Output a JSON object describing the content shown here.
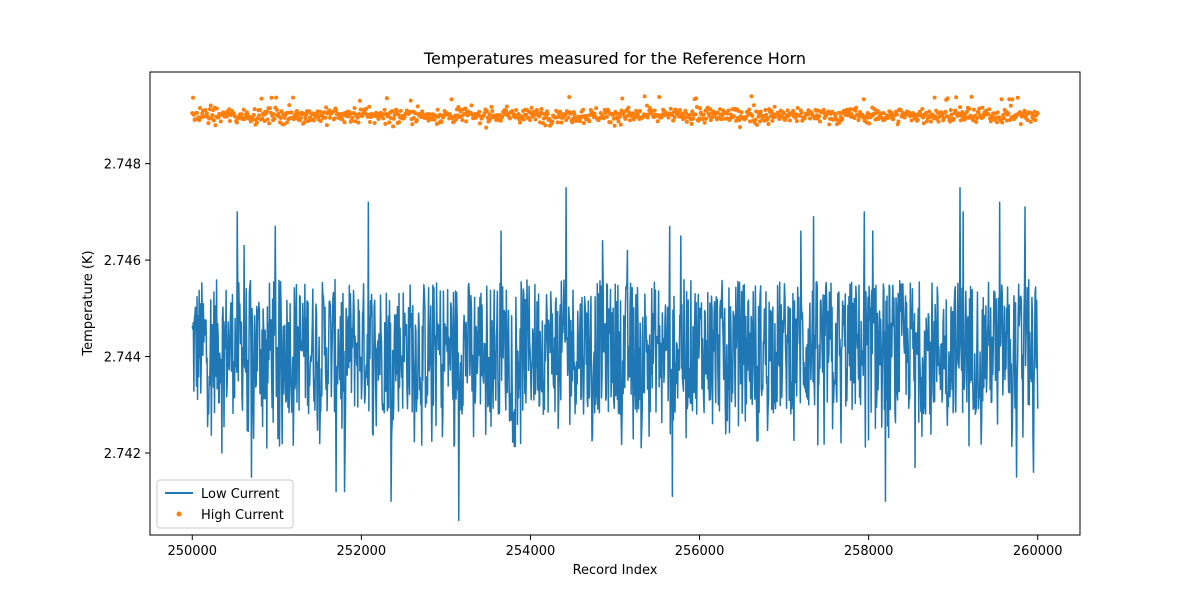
{
  "chart_data": {
    "type": "line",
    "title": "Temperatures measured for the Reference Horn",
    "xlabel": "Record Index",
    "ylabel": "Temperature (K)",
    "xlim": [
      249500,
      260500
    ],
    "ylim": [
      2.7403,
      2.7499
    ],
    "xticks": [
      250000,
      252000,
      254000,
      256000,
      258000,
      260000
    ],
    "yticks": [
      2.742,
      2.744,
      2.746,
      2.748
    ],
    "ytick_labels": [
      "2.742",
      "2.744",
      "2.746",
      "2.748"
    ],
    "grid": false,
    "legend_position": "lower-left",
    "series": [
      {
        "name": "Low Current",
        "style": "line",
        "color": "#1f77b4",
        "x_range": [
          250000,
          260000
        ],
        "band_low": 2.7428,
        "band_high": 2.7456,
        "mean": 2.7443,
        "min": 2.7406,
        "max": 2.7475,
        "spikes_up": [
          {
            "x": 250530,
            "y": 2.747
          },
          {
            "x": 250610,
            "y": 2.7463
          },
          {
            "x": 250980,
            "y": 2.7467
          },
          {
            "x": 252080,
            "y": 2.7472
          },
          {
            "x": 253650,
            "y": 2.7466
          },
          {
            "x": 254420,
            "y": 2.7475
          },
          {
            "x": 254850,
            "y": 2.7464
          },
          {
            "x": 255150,
            "y": 2.7462
          },
          {
            "x": 255650,
            "y": 2.7467
          },
          {
            "x": 255780,
            "y": 2.7465
          },
          {
            "x": 257200,
            "y": 2.7466
          },
          {
            "x": 257350,
            "y": 2.7469
          },
          {
            "x": 257950,
            "y": 2.747
          },
          {
            "x": 258050,
            "y": 2.7466
          },
          {
            "x": 259080,
            "y": 2.7475
          },
          {
            "x": 259120,
            "y": 2.747
          },
          {
            "x": 259550,
            "y": 2.7472
          },
          {
            "x": 259850,
            "y": 2.7471
          }
        ],
        "spikes_down": [
          {
            "x": 250350,
            "y": 2.742
          },
          {
            "x": 250700,
            "y": 2.7415
          },
          {
            "x": 251700,
            "y": 2.7412
          },
          {
            "x": 251800,
            "y": 2.7412
          },
          {
            "x": 252350,
            "y": 2.741
          },
          {
            "x": 253150,
            "y": 2.7406
          },
          {
            "x": 255680,
            "y": 2.7411
          },
          {
            "x": 258200,
            "y": 2.741
          },
          {
            "x": 258550,
            "y": 2.7417
          },
          {
            "x": 259750,
            "y": 2.7415
          },
          {
            "x": 259950,
            "y": 2.7416
          }
        ]
      },
      {
        "name": "High Current",
        "style": "scatter",
        "color": "#ff7f0e",
        "x_range": [
          250000,
          260000
        ],
        "mean": 2.749,
        "min": 2.7487,
        "max": 2.7494,
        "noise_sd": 8e-05
      }
    ]
  }
}
